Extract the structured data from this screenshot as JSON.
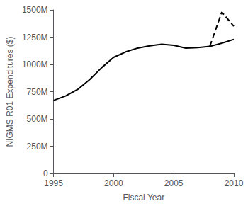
{
  "chart_data": {
    "type": "line",
    "xlabel": "Fiscal Year",
    "ylabel": "NIGMS R01 Expenditures ($)",
    "x": [
      1995,
      1996,
      1997,
      1998,
      1999,
      2000,
      2001,
      2002,
      2003,
      2004,
      2005,
      2006,
      2007,
      2008,
      2009,
      2010
    ],
    "series": [
      {
        "color": "#000000",
        "line_style": "solid",
        "values": [
          670,
          710,
          770,
          860,
          970,
          1065,
          1115,
          1150,
          1170,
          1185,
          1175,
          1150,
          1155,
          1165,
          1195,
          1230
        ]
      },
      {
        "color": "#000000",
        "line_style": "dashed",
        "values": [
          null,
          null,
          null,
          null,
          null,
          null,
          null,
          null,
          null,
          null,
          null,
          null,
          null,
          1165,
          1480,
          1350
        ]
      }
    ],
    "xlim": [
      1995,
      2010
    ],
    "xticks": [
      1995,
      2000,
      2005,
      2010
    ],
    "ylim": [
      0,
      1500
    ],
    "yticks": [
      0,
      {
        "value": 250,
        "label": "250M"
      },
      {
        "value": 500,
        "label": "500M"
      },
      {
        "value": 750,
        "label": "750M"
      },
      {
        "value": 1000,
        "label": "1000M"
      },
      {
        "value": 1250,
        "label": "1250M"
      },
      {
        "value": 1500,
        "label": "1500M"
      }
    ],
    "grid": false
  }
}
